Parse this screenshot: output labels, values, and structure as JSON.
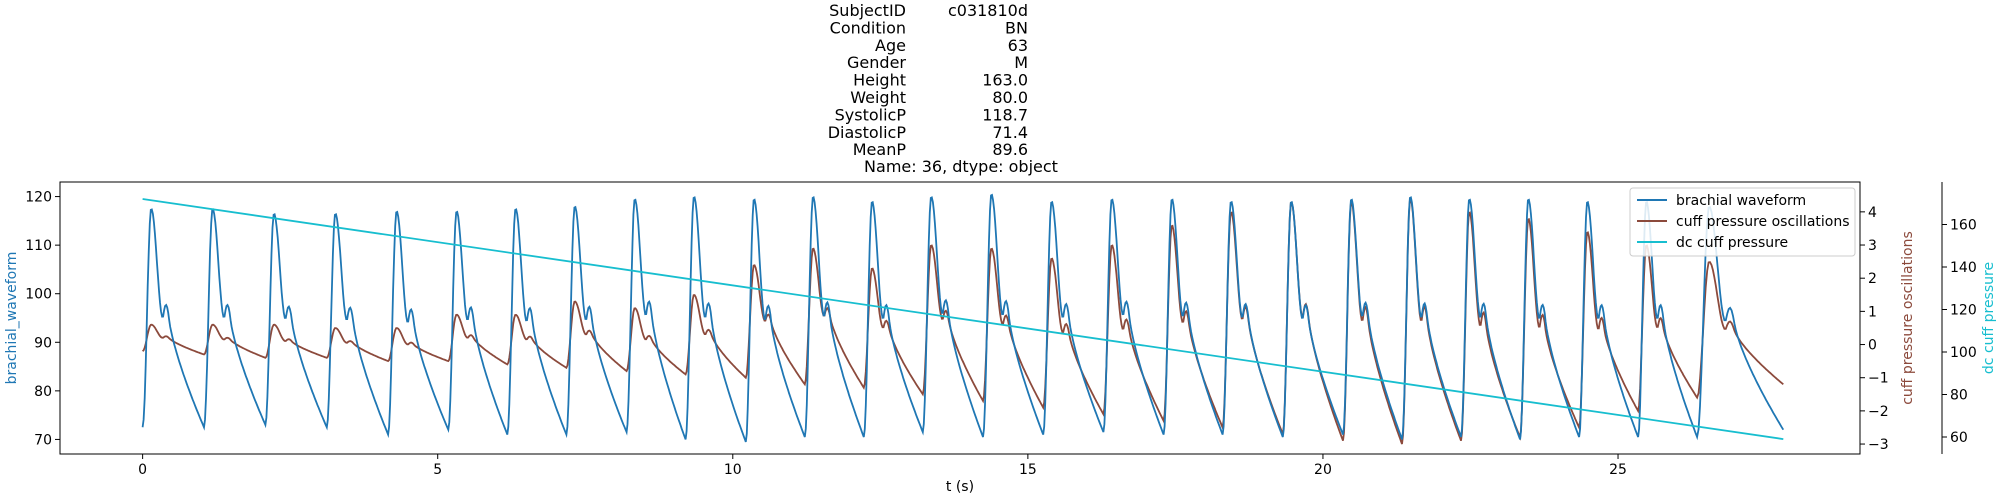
{
  "chart_data": {
    "type": "line",
    "title_lines": [
      [
        "SubjectID",
        "c031810d"
      ],
      [
        "Condition",
        "BN"
      ],
      [
        "Age",
        "63"
      ],
      [
        "Gender",
        "M"
      ],
      [
        "Height",
        "163.0"
      ],
      [
        "Weight",
        "80.0"
      ],
      [
        "SystolicP",
        "118.7"
      ],
      [
        "DiastolicP",
        "71.4"
      ],
      [
        "MeanP",
        "89.6"
      ]
    ],
    "title_footer": "Name: 36, dtype: object",
    "xlabel": "t (s)",
    "ylabel_left": "brachial_waveform",
    "ylabel_right1": "cuff pressure oscillations",
    "ylabel_right2": "dc cuff pressure",
    "xlim": [
      -1.4,
      29.1
    ],
    "xticks": [
      0,
      5,
      10,
      15,
      20,
      25
    ],
    "ylim_left": [
      67,
      123
    ],
    "yticks_left": [
      70,
      80,
      90,
      100,
      110,
      120
    ],
    "ylim_right1": [
      -3.3,
      4.9
    ],
    "yticks_right1": [
      -3,
      -2,
      -1,
      0,
      1,
      2,
      3,
      4
    ],
    "ylim_right2": [
      52,
      180
    ],
    "yticks_right2": [
      60,
      80,
      100,
      120,
      140,
      160
    ],
    "legend_position": "top-right",
    "colors": {
      "brachial": "#1f77b4",
      "cuff_osc": "#8c4a3c",
      "dc_cuff": "#17becf"
    },
    "series": [
      {
        "name": "brachial waveform",
        "color": "#1f77b4",
        "axis": "left",
        "t_start": 0,
        "t_end": 27.8,
        "beat_times": [
          0.0,
          1.04,
          2.08,
          3.12,
          4.16,
          5.18,
          6.18,
          7.18,
          8.2,
          9.2,
          10.22,
          11.22,
          12.22,
          13.22,
          14.24,
          15.26,
          16.28,
          17.3,
          18.3,
          19.32,
          20.34,
          21.34,
          22.34,
          23.34,
          24.34,
          25.34,
          26.34
        ],
        "peaks": [
          117.5,
          117.5,
          116.5,
          116.5,
          117.0,
          117.0,
          117.5,
          118.0,
          119.5,
          120.0,
          119.5,
          120.0,
          119.0,
          120.0,
          120.5,
          119.0,
          119.5,
          119.5,
          119.0,
          119.0,
          119.5,
          120.0,
          119.5,
          119.5,
          119.0,
          119.0,
          118.0
        ],
        "troughs": [
          72.5,
          72.5,
          73.0,
          72.5,
          71.0,
          72.0,
          71.0,
          71.0,
          71.5,
          70.0,
          69.5,
          70.5,
          70.5,
          71.5,
          70.5,
          71.0,
          71.5,
          71.0,
          71.0,
          70.5,
          71.0,
          70.0,
          70.5,
          70.0,
          70.5,
          70.5,
          70.5
        ],
        "end_value": 72.0
      },
      {
        "name": "cuff pressure oscillations",
        "color": "#8c4a3c",
        "axis": "right1",
        "t_start": 0,
        "t_end": 27.8,
        "beat_times": [
          0.0,
          1.04,
          2.08,
          3.12,
          4.16,
          5.18,
          6.18,
          7.18,
          8.2,
          9.2,
          10.22,
          11.22,
          12.22,
          13.22,
          14.24,
          15.26,
          16.28,
          17.3,
          18.3,
          19.32,
          20.34,
          21.34,
          22.34,
          23.34,
          24.34,
          25.34,
          26.34
        ],
        "peaks": [
          0.6,
          0.6,
          0.6,
          0.5,
          0.5,
          0.9,
          0.9,
          1.3,
          1.1,
          1.5,
          2.4,
          2.9,
          2.3,
          3.0,
          2.9,
          2.6,
          3.0,
          3.6,
          4.0,
          4.3,
          4.3,
          4.4,
          4.0,
          3.8,
          3.4,
          3.0,
          2.5
        ],
        "troughs": [
          -0.2,
          -0.3,
          -0.4,
          -0.4,
          -0.5,
          -0.5,
          -0.6,
          -0.7,
          -0.8,
          -0.9,
          -1.0,
          -1.2,
          -1.3,
          -1.5,
          -1.7,
          -1.9,
          -2.1,
          -2.3,
          -2.5,
          -2.7,
          -2.9,
          -3.0,
          -2.9,
          -2.8,
          -2.5,
          -2.0,
          -1.6
        ],
        "end_value": -1.2
      },
      {
        "name": "dc cuff pressure",
        "color": "#17becf",
        "axis": "right2",
        "points": [
          [
            0.0,
            172.0
          ],
          [
            27.8,
            59.0
          ]
        ]
      }
    ]
  }
}
